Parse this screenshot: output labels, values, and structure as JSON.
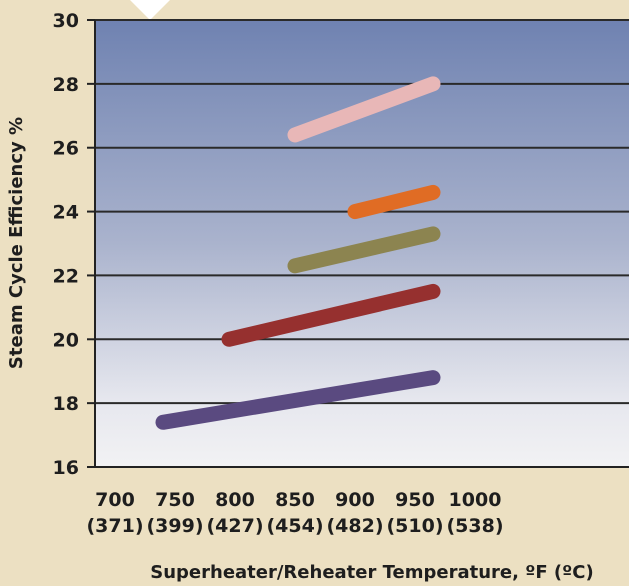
{
  "chart_data": {
    "type": "line",
    "title": "",
    "xlabel": "Superheater/Reheater Temperature, ºF (ºC)",
    "ylabel": "Steam Cycle Efficiency %",
    "xlim": [
      700,
      1000
    ],
    "ylim": [
      16,
      30
    ],
    "grid": true,
    "x_ticks": [
      {
        "value": 700,
        "label": "700",
        "sublabel": "(371)"
      },
      {
        "value": 750,
        "label": "750",
        "sublabel": "(399)"
      },
      {
        "value": 800,
        "label": "800",
        "sublabel": "(427)"
      },
      {
        "value": 850,
        "label": "850",
        "sublabel": "(454)"
      },
      {
        "value": 900,
        "label": "900",
        "sublabel": "(482)"
      },
      {
        "value": 950,
        "label": "950",
        "sublabel": "(510)"
      },
      {
        "value": 1000,
        "label": "1000",
        "sublabel": "(538)"
      }
    ],
    "y_ticks": [
      {
        "value": 16,
        "label": "16"
      },
      {
        "value": 18,
        "label": "18"
      },
      {
        "value": 20,
        "label": "20"
      },
      {
        "value": 22,
        "label": "22"
      },
      {
        "value": 24,
        "label": "24"
      },
      {
        "value": 26,
        "label": "26"
      },
      {
        "value": 28,
        "label": "28"
      },
      {
        "value": 30,
        "label": "30"
      }
    ],
    "series": [
      {
        "color": "#5a4a80",
        "x": [
          740,
          965
        ],
        "y": [
          17.4,
          18.8
        ]
      },
      {
        "color": "#96302f",
        "x": [
          795,
          965
        ],
        "y": [
          20.0,
          21.5
        ]
      },
      {
        "color": "#8c8450",
        "x": [
          850,
          965
        ],
        "y": [
          22.3,
          23.3
        ]
      },
      {
        "color": "#e06c24",
        "x": [
          900,
          965
        ],
        "y": [
          24.0,
          24.6
        ]
      },
      {
        "color": "#e8b7b7",
        "x": [
          850,
          965
        ],
        "y": [
          26.4,
          28.0
        ]
      }
    ]
  }
}
